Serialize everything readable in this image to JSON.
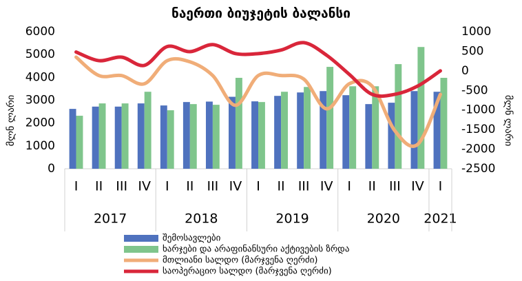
{
  "chart_data": {
    "type": "bar_line_combo",
    "title": "ნაერთი ბიუჯეტის ბალანსი",
    "y_label": "მლნ ლარი",
    "y2_label": "მლნ ლარი",
    "categories": [
      "I",
      "II",
      "III",
      "IV",
      "I",
      "II",
      "III",
      "IV",
      "I",
      "II",
      "III",
      "IV",
      "I",
      "II",
      "III",
      "IV",
      "I"
    ],
    "category_groups": [
      {
        "name": "2017",
        "size": 4
      },
      {
        "name": "2018",
        "size": 4
      },
      {
        "name": "2019",
        "size": 4
      },
      {
        "name": "2020",
        "size": 4
      },
      {
        "name": "2021",
        "size": 1
      }
    ],
    "ylim": [
      0,
      6000
    ],
    "yticks": [
      0,
      1000,
      2000,
      3000,
      4000,
      5000,
      6000
    ],
    "y2lim": [
      -2500,
      1000
    ],
    "y2ticks": [
      -2500,
      -2000,
      -1500,
      -1000,
      -500,
      0,
      500,
      1000
    ],
    "series": [
      {
        "name": "შემოსავლები",
        "kind": "bar",
        "color": "#4f72be",
        "values": [
          2620,
          2720,
          2720,
          2860,
          2770,
          2920,
          2940,
          3150,
          2950,
          3190,
          3340,
          3400,
          3220,
          2830,
          2890,
          3400,
          3370
        ]
      },
      {
        "name": "ხარჯები და არაფინანსური აქტივების ზრდა",
        "kind": "bar",
        "color": "#7fc58c",
        "values": [
          2320,
          2860,
          2860,
          3370,
          2560,
          2830,
          2800,
          3980,
          2920,
          3370,
          3580,
          4460,
          3610,
          3610,
          4580,
          5330,
          3980
        ]
      },
      {
        "name": "მთლიანი სალდო (მარჯვენა ღერძი)",
        "kind": "line",
        "axis": "y2",
        "color": "#f0ad78",
        "values": [
          350,
          -120,
          -120,
          -330,
          260,
          230,
          -120,
          -880,
          -120,
          -120,
          -210,
          -970,
          -330,
          -390,
          -1530,
          -1880,
          -600
        ]
      },
      {
        "name": "საოპერაციო სალდო (მარჯვენა ღერძი)",
        "kind": "line",
        "axis": "y2",
        "color": "#d9263a",
        "values": [
          480,
          260,
          350,
          140,
          620,
          490,
          670,
          440,
          440,
          530,
          720,
          400,
          -90,
          -600,
          -600,
          -390,
          0
        ]
      }
    ]
  }
}
